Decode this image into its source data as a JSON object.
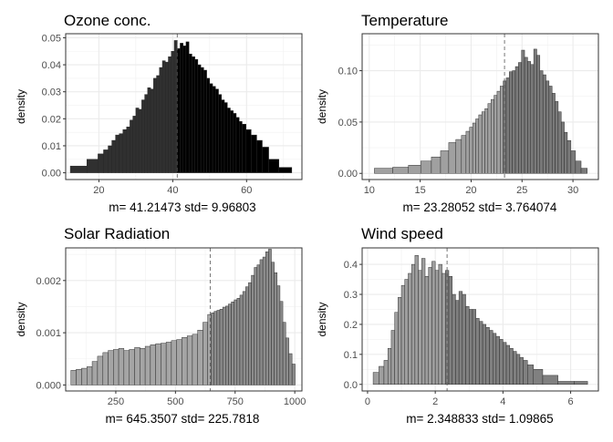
{
  "chart_data": [
    {
      "type": "bar",
      "title": "Ozone conc.",
      "ylabel": "density",
      "stats_label": "m=  41.21473  std=  9.96803",
      "mean": 41.21473,
      "xlim": [
        11,
        75
      ],
      "ylim": [
        -0.0025,
        0.0515
      ],
      "xticks": [
        20,
        40,
        60
      ],
      "yticks": [
        0.0,
        0.01,
        0.02,
        0.03,
        0.04,
        0.05
      ],
      "ytick_labels": [
        "0.00",
        "0.01",
        "0.02",
        "0.03",
        "0.04",
        "0.05"
      ],
      "colors": [
        "#303030",
        "#000000"
      ],
      "x": [
        14.5,
        19,
        20.5,
        22,
        23,
        24,
        25,
        26,
        27,
        28,
        28.8,
        29.6,
        30.4,
        31.2,
        32,
        32.8,
        33.6,
        34.4,
        35.2,
        36,
        36.8,
        37.6,
        38.4,
        39.2,
        40,
        40.8,
        41.6,
        42.4,
        43.2,
        44,
        44.8,
        45.6,
        46.4,
        47.2,
        48,
        48.8,
        49.6,
        50.4,
        51.2,
        52,
        52.8,
        53.6,
        54.4,
        55.2,
        56,
        56.8,
        57.6,
        58.4,
        59.2,
        60.5,
        62,
        63.5,
        65,
        67,
        70.5
      ],
      "values": [
        0.0025,
        0.005,
        0.007,
        0.0085,
        0.01,
        0.012,
        0.014,
        0.0145,
        0.016,
        0.017,
        0.0195,
        0.021,
        0.024,
        0.0235,
        0.027,
        0.029,
        0.0315,
        0.031,
        0.035,
        0.036,
        0.039,
        0.0415,
        0.041,
        0.043,
        0.045,
        0.049,
        0.046,
        0.048,
        0.047,
        0.0485,
        0.044,
        0.043,
        0.042,
        0.04,
        0.039,
        0.038,
        0.035,
        0.033,
        0.032,
        0.031,
        0.029,
        0.027,
        0.026,
        0.024,
        0.023,
        0.022,
        0.0205,
        0.019,
        0.018,
        0.016,
        0.014,
        0.012,
        0.0095,
        0.005,
        0.002
      ]
    },
    {
      "type": "bar",
      "title": "Temperature",
      "ylabel": "density",
      "stats_label": "m=  23.28052  std=  3.764074",
      "mean": 23.28052,
      "xlim": [
        9.3,
        32.5
      ],
      "ylim": [
        -0.006,
        0.136
      ],
      "xticks": [
        10,
        15,
        20,
        25,
        30
      ],
      "yticks": [
        0.0,
        0.05,
        0.1
      ],
      "ytick_labels": [
        "0.00",
        "0.05",
        "0.10"
      ],
      "colors": [
        "#a0a0a0",
        "#7a7a7a"
      ],
      "x": [
        11.4,
        13.2,
        14.5,
        15.6,
        16.6,
        17.4,
        18.2,
        18.8,
        19.3,
        19.7,
        20.0,
        20.3,
        20.6,
        20.9,
        21.2,
        21.5,
        21.8,
        22.1,
        22.4,
        22.7,
        23.0,
        23.3,
        23.6,
        23.9,
        24.2,
        24.5,
        24.8,
        25.1,
        25.4,
        25.7,
        26.0,
        26.3,
        26.6,
        26.9,
        27.2,
        27.5,
        27.8,
        28.1,
        28.4,
        28.7,
        29.0,
        29.3,
        29.6,
        30.0,
        30.5,
        31.1
      ],
      "values": [
        0.005,
        0.006,
        0.008,
        0.012,
        0.016,
        0.022,
        0.03,
        0.033,
        0.037,
        0.041,
        0.045,
        0.049,
        0.053,
        0.057,
        0.06,
        0.063,
        0.068,
        0.072,
        0.076,
        0.08,
        0.085,
        0.09,
        0.093,
        0.099,
        0.1,
        0.104,
        0.108,
        0.12,
        0.113,
        0.109,
        0.106,
        0.121,
        0.115,
        0.1,
        0.096,
        0.09,
        0.085,
        0.078,
        0.07,
        0.06,
        0.05,
        0.04,
        0.032,
        0.022,
        0.012,
        0.005
      ]
    },
    {
      "type": "bar",
      "title": "Solar Radiation",
      "ylabel": "density",
      "stats_label": "m=  645.3507  std=  225.7818",
      "mean": 645.3507,
      "xlim": [
        40,
        1030
      ],
      "ylim": [
        -0.000115,
        0.002625
      ],
      "xticks": [
        250,
        500,
        750,
        1000
      ],
      "yticks": [
        0.0,
        0.001,
        0.002
      ],
      "ytick_labels": [
        "0.000",
        "0.001",
        "0.002"
      ],
      "colors": [
        "#a5a5a5",
        "#8c8c8c"
      ],
      "x": [
        73,
        95,
        118,
        140,
        162,
        185,
        207,
        229,
        251,
        273,
        295,
        318,
        340,
        362,
        384,
        406,
        428,
        450,
        472,
        494,
        516,
        538,
        560,
        582,
        604,
        626,
        644,
        656,
        668,
        680,
        692,
        704,
        716,
        728,
        740,
        752,
        764,
        776,
        788,
        800,
        812,
        824,
        836,
        848,
        860,
        872,
        884,
        896,
        908,
        920,
        932,
        944,
        956,
        968,
        982,
        995
      ],
      "values": [
        0.00028,
        0.0003,
        0.00032,
        0.00035,
        0.00045,
        0.00055,
        0.00062,
        0.00066,
        0.00068,
        0.0007,
        0.00066,
        0.00068,
        0.00072,
        0.0007,
        0.00074,
        0.00077,
        0.00079,
        0.0008,
        0.00082,
        0.00085,
        0.00087,
        0.00091,
        0.00094,
        0.00097,
        0.00105,
        0.0012,
        0.00135,
        0.00138,
        0.00141,
        0.00143,
        0.00145,
        0.00149,
        0.00151,
        0.00155,
        0.00159,
        0.00163,
        0.00166,
        0.00172,
        0.00179,
        0.00188,
        0.00196,
        0.0021,
        0.00225,
        0.0023,
        0.0024,
        0.00245,
        0.00255,
        0.0026,
        0.00235,
        0.00215,
        0.0019,
        0.0016,
        0.0012,
        0.0009,
        0.0006,
        0.0004
      ]
    },
    {
      "type": "bar",
      "title": "Wind speed",
      "ylabel": "density",
      "stats_label": "m=  2.348833  std=  1.09865",
      "mean": 2.348833,
      "xlim": [
        -0.16,
        6.82
      ],
      "ylim": [
        -0.022,
        0.455
      ],
      "xticks": [
        0,
        2,
        4,
        6
      ],
      "yticks": [
        0.0,
        0.1,
        0.2,
        0.3,
        0.4
      ],
      "ytick_labels": [
        "0.0",
        "0.1",
        "0.2",
        "0.3",
        "0.4"
      ],
      "colors": [
        "#9e9e9e",
        "#808080"
      ],
      "x": [
        0.25,
        0.42,
        0.55,
        0.65,
        0.75,
        0.85,
        0.95,
        1.05,
        1.15,
        1.25,
        1.35,
        1.45,
        1.55,
        1.65,
        1.75,
        1.85,
        1.95,
        2.05,
        2.15,
        2.25,
        2.35,
        2.45,
        2.55,
        2.65,
        2.75,
        2.85,
        2.95,
        3.05,
        3.15,
        3.25,
        3.35,
        3.45,
        3.55,
        3.65,
        3.75,
        3.85,
        3.95,
        4.05,
        4.15,
        4.25,
        4.35,
        4.45,
        4.55,
        4.65,
        4.8,
        5.0,
        5.35,
        5.9,
        6.3
      ],
      "values": [
        0.04,
        0.06,
        0.08,
        0.12,
        0.18,
        0.24,
        0.29,
        0.33,
        0.35,
        0.37,
        0.4,
        0.43,
        0.38,
        0.42,
        0.36,
        0.39,
        0.41,
        0.38,
        0.4,
        0.37,
        0.38,
        0.36,
        0.3,
        0.28,
        0.31,
        0.3,
        0.26,
        0.25,
        0.25,
        0.22,
        0.21,
        0.2,
        0.19,
        0.18,
        0.17,
        0.16,
        0.15,
        0.14,
        0.13,
        0.12,
        0.11,
        0.1,
        0.09,
        0.08,
        0.065,
        0.05,
        0.03,
        0.01,
        0.01
      ]
    }
  ]
}
